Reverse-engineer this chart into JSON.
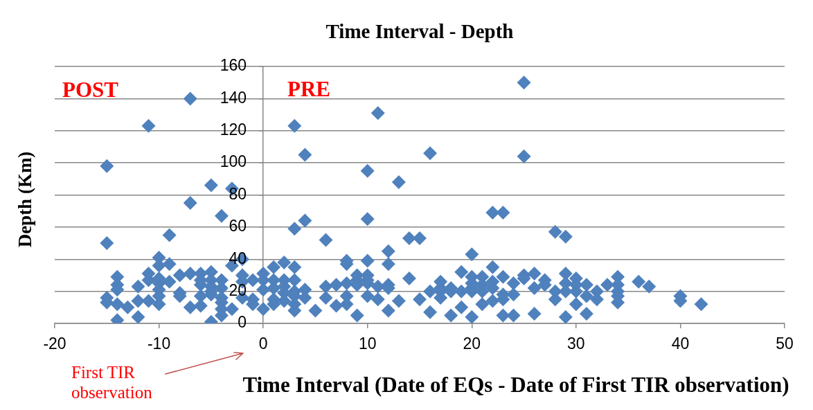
{
  "chart_data": {
    "type": "scatter",
    "title": "Time Interval - Depth",
    "xlabel": "Time Interval (Date of EQs - Date of First TIR observation)",
    "ylabel": "Depth (Km)",
    "annotations": [
      "POST",
      "PRE",
      "First TIR observation"
    ],
    "x": [
      -15,
      -15,
      -15,
      -15,
      -14,
      -14,
      -14,
      -14,
      -14,
      -13,
      -12,
      -12,
      -12,
      -11,
      -11,
      -11,
      -11,
      -10,
      -10,
      -10,
      -10,
      -10,
      -10,
      -10,
      -9,
      -9,
      -9,
      -8,
      -8,
      -8,
      -7,
      -7,
      -7,
      -7,
      -6,
      -6,
      -6,
      -6,
      -6,
      -5,
      -5,
      -5,
      -5,
      -5,
      -5,
      -5,
      -4,
      -4,
      -4,
      -4,
      -4,
      -4,
      -4,
      -3,
      -3,
      -3,
      -2,
      -2,
      -2,
      -2,
      -1,
      -1,
      -1,
      0,
      0,
      0,
      0,
      1,
      1,
      1,
      1,
      1,
      2,
      2,
      2,
      2,
      2,
      3,
      3,
      3,
      3,
      3,
      3,
      3,
      3,
      4,
      4,
      4,
      4,
      5,
      6,
      6,
      6,
      7,
      7,
      8,
      8,
      8,
      8,
      8,
      9,
      9,
      9,
      9,
      10,
      10,
      10,
      10,
      10,
      10,
      10,
      11,
      11,
      11,
      12,
      12,
      12,
      12,
      12,
      13,
      13,
      14,
      14,
      15,
      15,
      16,
      16,
      16,
      17,
      17,
      17,
      17,
      18,
      18,
      18,
      19,
      19,
      19,
      20,
      20,
      20,
      20,
      20,
      20,
      21,
      21,
      21,
      21,
      22,
      22,
      22,
      22,
      22,
      23,
      23,
      23,
      23,
      23,
      24,
      24,
      24,
      25,
      25,
      25,
      25,
      26,
      26,
      26,
      27,
      27,
      28,
      28,
      28,
      29,
      29,
      29,
      29,
      29,
      30,
      30,
      30,
      30,
      31,
      31,
      31,
      32,
      32,
      33,
      34,
      34,
      34,
      34,
      34,
      36,
      37,
      40,
      40,
      42
    ],
    "values": [
      98,
      50,
      16,
      13,
      29,
      24,
      21,
      12,
      2,
      10,
      23,
      14,
      4,
      123,
      31,
      27,
      14,
      41,
      36,
      28,
      25,
      21,
      17,
      12,
      55,
      37,
      26,
      30,
      19,
      17,
      140,
      75,
      31,
      10,
      31,
      27,
      24,
      17,
      11,
      86,
      32,
      27,
      23,
      20,
      18,
      1,
      67,
      27,
      22,
      16,
      13,
      9,
      5,
      84,
      36,
      9,
      40,
      30,
      26,
      16,
      27,
      15,
      12,
      31,
      27,
      21,
      9,
      35,
      27,
      22,
      15,
      12,
      38,
      27,
      23,
      19,
      14,
      123,
      59,
      35,
      27,
      20,
      17,
      12,
      8,
      105,
      64,
      21,
      16,
      8,
      52,
      23,
      16,
      24,
      11,
      39,
      37,
      25,
      17,
      12,
      30,
      27,
      24,
      5,
      95,
      65,
      39,
      30,
      27,
      25,
      17,
      131,
      23,
      15,
      45,
      37,
      24,
      22,
      8,
      88,
      14,
      53,
      28,
      53,
      15,
      106,
      20,
      7,
      26,
      22,
      20,
      16,
      22,
      20,
      5,
      32,
      20,
      10,
      43,
      29,
      25,
      22,
      20,
      4,
      29,
      24,
      20,
      12,
      69,
      35,
      26,
      22,
      14,
      69,
      29,
      18,
      15,
      5,
      25,
      18,
      5,
      150,
      104,
      30,
      28,
      31,
      22,
      6,
      27,
      24,
      57,
      20,
      15,
      54,
      31,
      25,
      20,
      4,
      28,
      24,
      20,
      12,
      24,
      17,
      6,
      20,
      15,
      24,
      29,
      24,
      20,
      17,
      13,
      26,
      23,
      17,
      14,
      12
    ],
    "color": "#4f81bd",
    "marker": "diamond",
    "xlim": [
      -20,
      50
    ],
    "xticks": [
      -20,
      -10,
      0,
      10,
      20,
      30,
      40,
      50
    ],
    "ylim": [
      0,
      160
    ],
    "yticks": [
      0,
      20,
      40,
      60,
      80,
      100,
      120,
      140,
      160
    ],
    "grid": "y"
  }
}
